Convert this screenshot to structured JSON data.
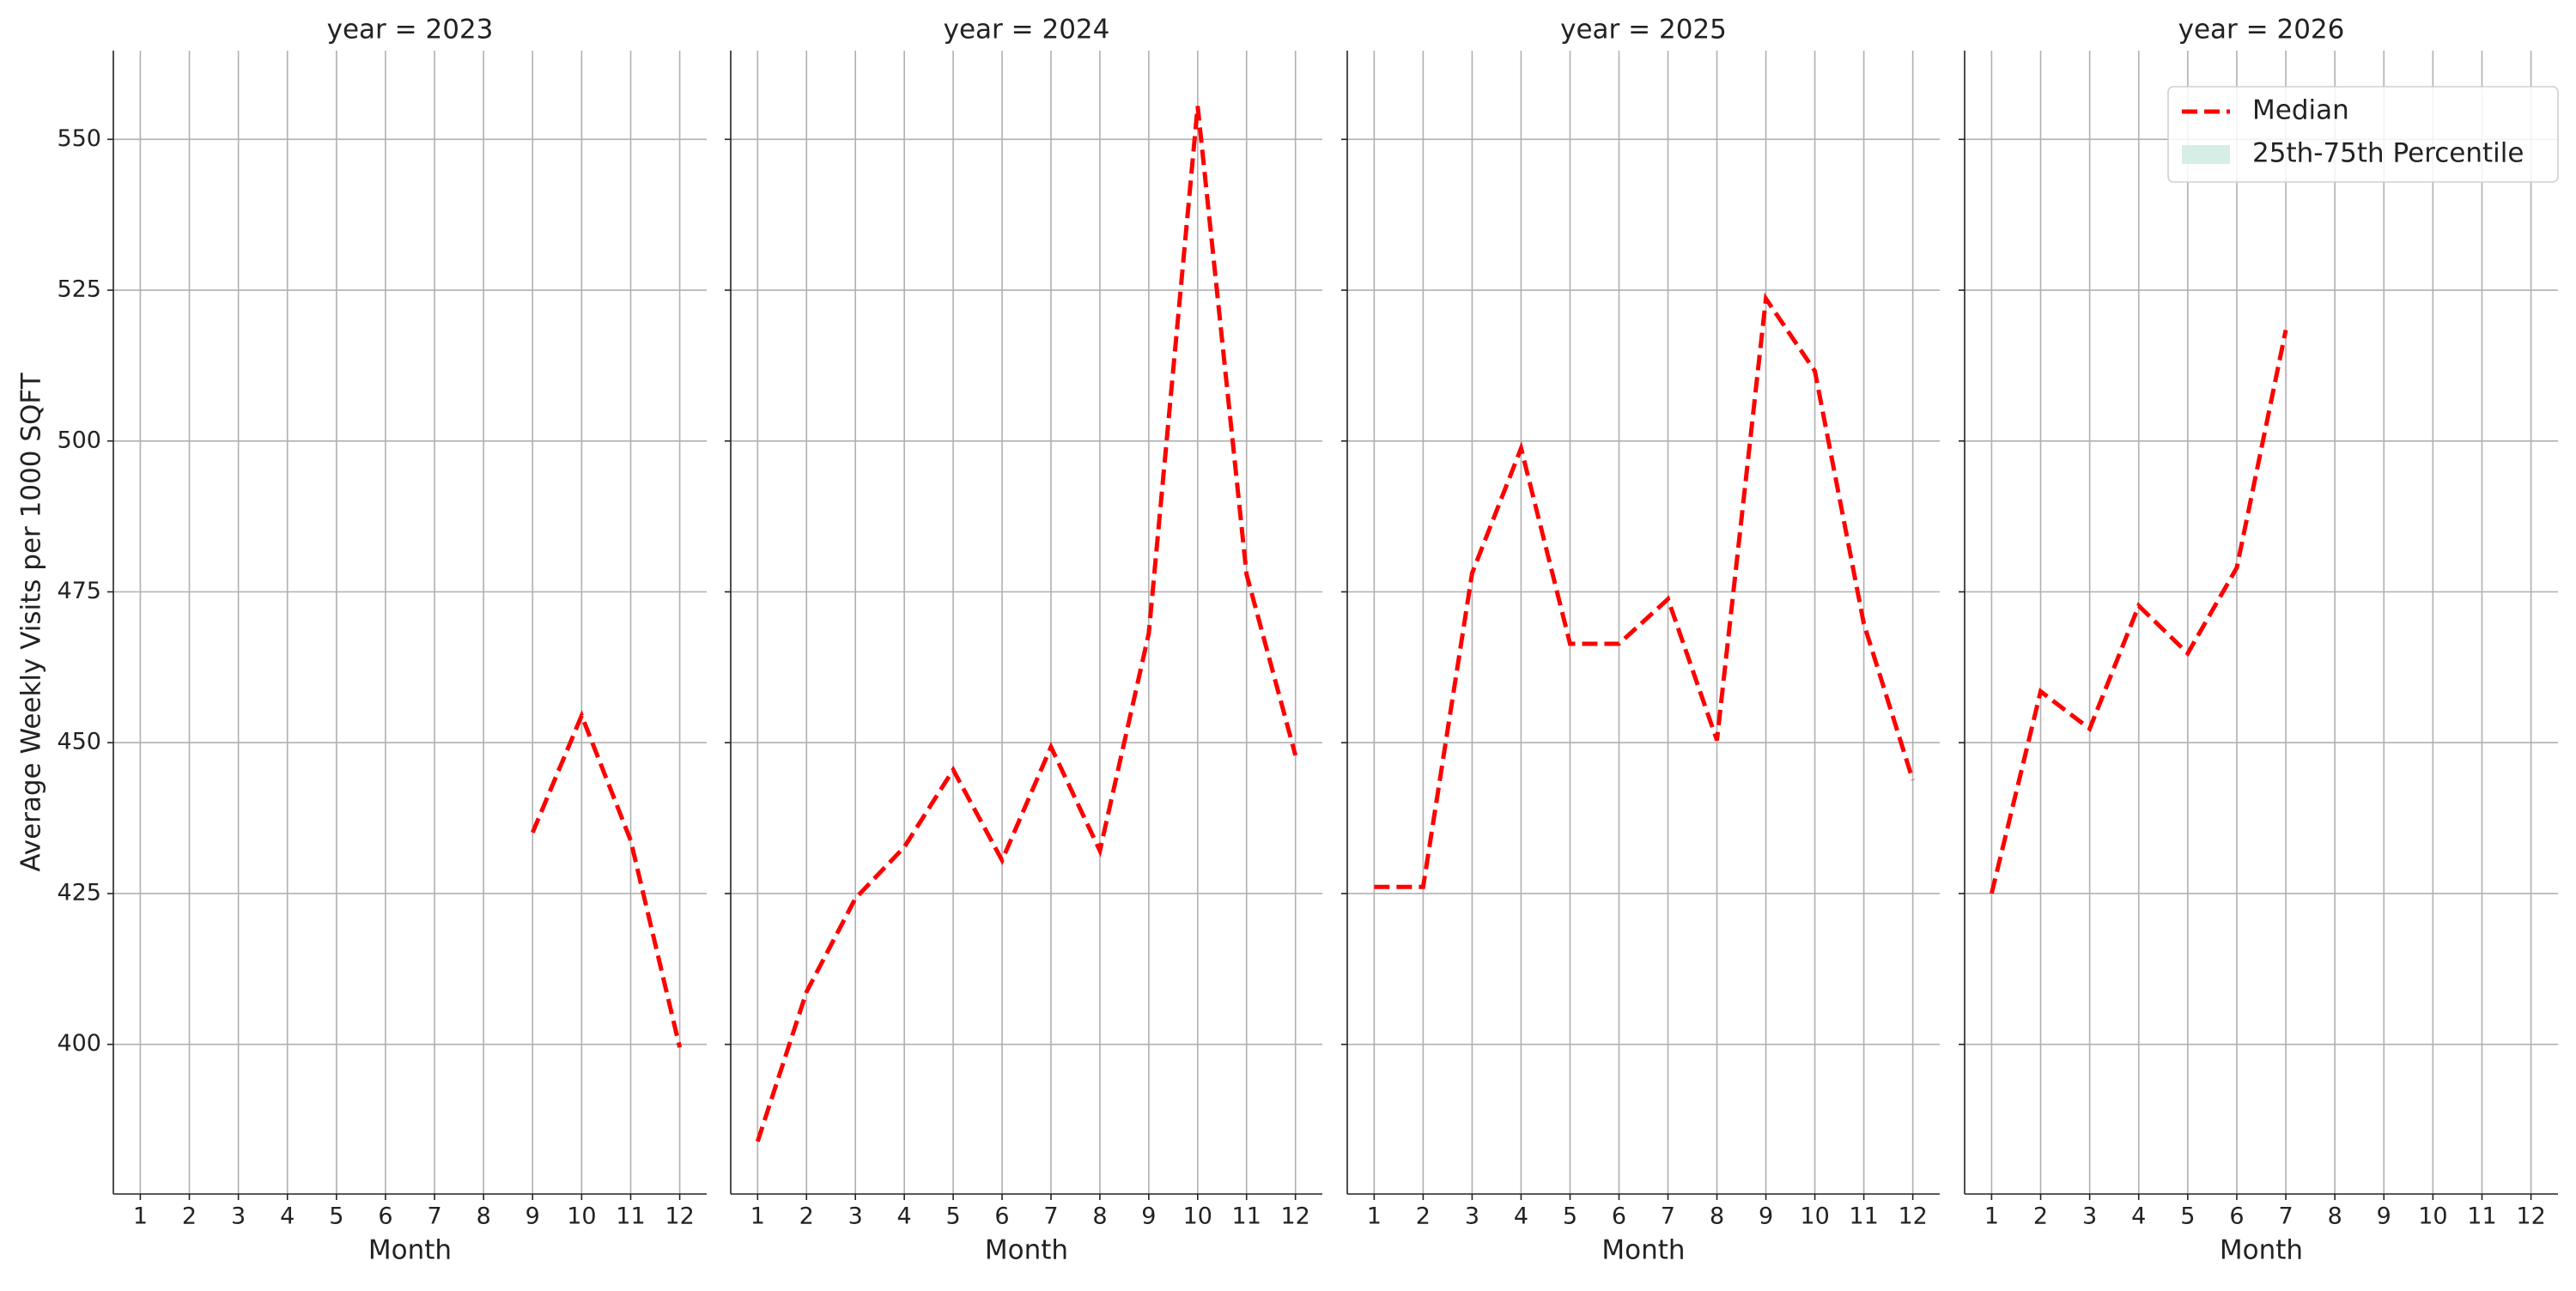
{
  "chart_data": [
    {
      "type": "line",
      "title": "year = 2023",
      "xlabel": "Month",
      "ylabel": "Average Weekly Visits per 1000 SQFT",
      "x": [
        9,
        10,
        11,
        12
      ],
      "values": [
        435.1,
        454.5,
        433.8,
        399.5
      ],
      "color": "#ff0000",
      "xlim": [
        0.45,
        12.55
      ],
      "xticks": [
        1,
        2,
        3,
        4,
        5,
        6,
        7,
        8,
        9,
        10,
        11,
        12
      ],
      "ylim": [
        375.2,
        564.7
      ],
      "yticks": [
        400,
        425,
        450,
        475,
        500,
        525,
        550
      ],
      "grid": true
    },
    {
      "type": "line",
      "title": "year = 2024",
      "xlabel": "Month",
      "x": [
        1,
        2,
        3,
        4,
        5,
        6,
        7,
        8,
        9,
        10,
        11,
        12
      ],
      "values": [
        383.9,
        408.7,
        424.2,
        432.7,
        445.5,
        430.5,
        449.3,
        432.1,
        468.1,
        555.5,
        477.9,
        447.9
      ],
      "color": "#ff0000",
      "xlim": [
        0.45,
        12.55
      ],
      "xticks": [
        1,
        2,
        3,
        4,
        5,
        6,
        7,
        8,
        9,
        10,
        11,
        12
      ],
      "ylim": [
        375.2,
        564.7
      ],
      "yticks": [
        400,
        425,
        450,
        475,
        500,
        525,
        550
      ],
      "grid": true
    },
    {
      "type": "line",
      "title": "year = 2025",
      "xlabel": "Month",
      "x": [
        1,
        2,
        3,
        4,
        5,
        6,
        7,
        8,
        9,
        10,
        11,
        12
      ],
      "values": [
        426.1,
        426.1,
        478.1,
        498.8,
        466.4,
        466.4,
        473.8,
        450.4,
        523.6,
        511.6,
        469.7,
        443.8
      ],
      "color": "#ff0000",
      "xlim": [
        0.45,
        12.55
      ],
      "xticks": [
        1,
        2,
        3,
        4,
        5,
        6,
        7,
        8,
        9,
        10,
        11,
        12
      ],
      "ylim": [
        375.2,
        564.7
      ],
      "yticks": [
        400,
        425,
        450,
        475,
        500,
        525,
        550
      ],
      "grid": true
    },
    {
      "type": "line",
      "title": "year = 2026",
      "xlabel": "Month",
      "x": [
        1,
        2,
        3,
        4,
        5,
        6,
        7
      ],
      "values": [
        425.0,
        458.5,
        452.3,
        472.7,
        464.8,
        479.0,
        518.4
      ],
      "color": "#ff0000",
      "xlim": [
        0.45,
        12.55
      ],
      "xticks": [
        1,
        2,
        3,
        4,
        5,
        6,
        7,
        8,
        9,
        10,
        11,
        12
      ],
      "ylim": [
        375.2,
        564.7
      ],
      "yticks": [
        400,
        425,
        450,
        475,
        500,
        525,
        550
      ],
      "grid": true,
      "legend_loc": "upper right",
      "legend": [
        {
          "name": "Median",
          "color": "#ff0000"
        },
        {
          "name": "25th-75th Percentile",
          "color": "#d6eee6"
        }
      ]
    }
  ]
}
